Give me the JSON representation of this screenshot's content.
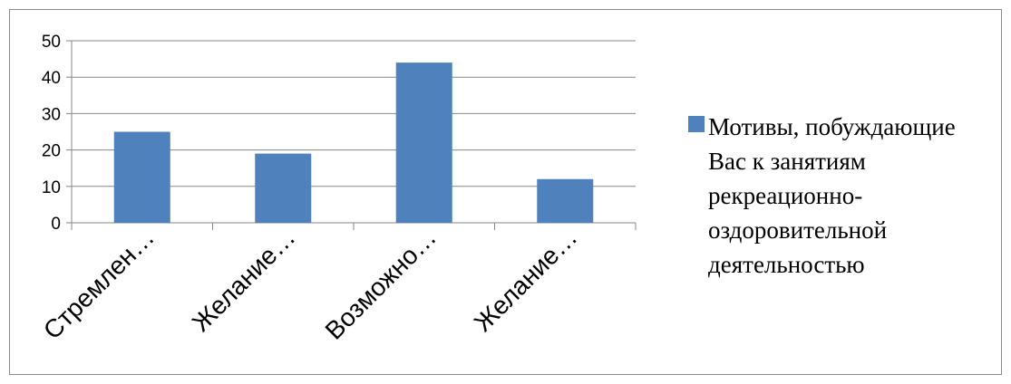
{
  "chart_data": {
    "type": "bar",
    "categories": [
      "Стремлен…",
      "Желание…",
      "Возможно…",
      "Желание…"
    ],
    "series": [
      {
        "name": "Мотивы, побуждающие Вас к занятиям рекреационно-оздоровительной деятельностью",
        "values": [
          25,
          19,
          44,
          12
        ],
        "color": "#4f81bd"
      }
    ],
    "ylim": [
      0,
      50
    ],
    "yticks": [
      0,
      10,
      20,
      30,
      40,
      50
    ],
    "grid": true,
    "legend": "right"
  }
}
